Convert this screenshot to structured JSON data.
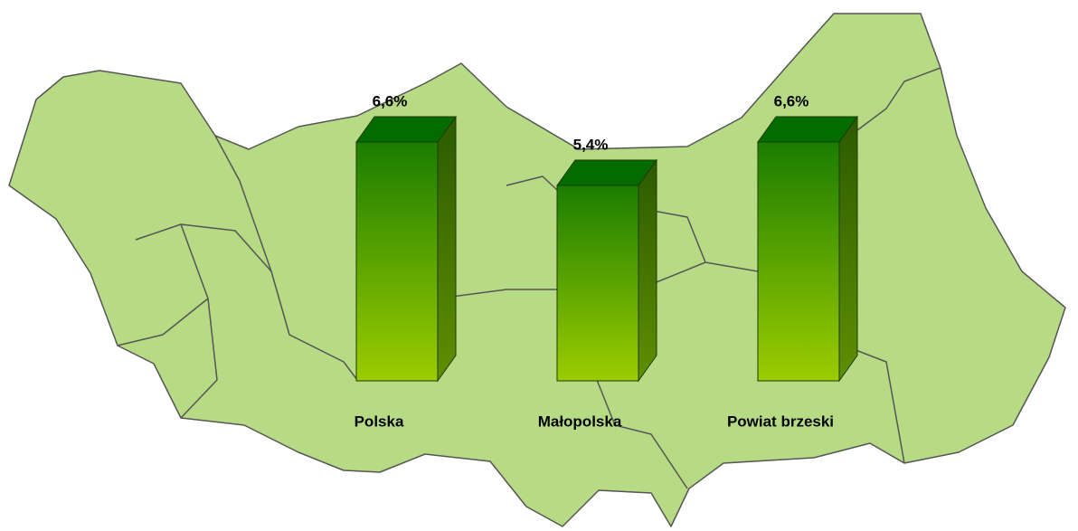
{
  "chart_data": {
    "type": "bar3d",
    "categories": [
      "Polska",
      "Małopolska",
      "Powiat brzeski"
    ],
    "values": [
      6.6,
      5.4,
      6.6
    ],
    "value_labels": [
      "6,6%",
      "5,4%",
      "6,6%"
    ]
  }
}
